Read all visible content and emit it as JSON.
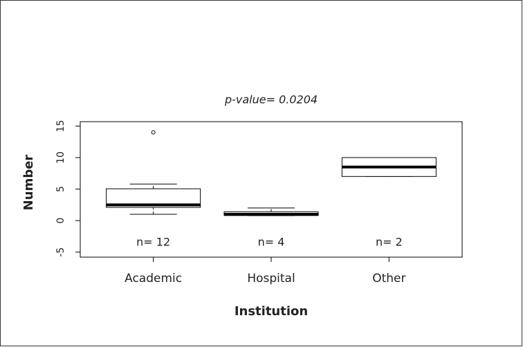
{
  "chart_data": {
    "type": "box",
    "title": "p-value= 0.0204",
    "x_label": "Institution",
    "y_label": "Number",
    "categories": [
      "Academic",
      "Hospital",
      "Other"
    ],
    "min": [
      1.0,
      0.8,
      7
    ],
    "q1": [
      2.1,
      0.8,
      7
    ],
    "median": [
      2.5,
      1.0,
      8.5
    ],
    "q3": [
      5.05,
      1.4,
      10
    ],
    "max": [
      5.8,
      2.0,
      10
    ],
    "outliers": [
      [
        14.0
      ],
      [],
      []
    ],
    "annotations": [
      "n= 12",
      "n= 4",
      "n= 2"
    ],
    "ylim": [
      -5.8,
      15.7
    ],
    "yticks": [
      -5,
      0,
      5,
      10,
      15
    ],
    "color": "#000000"
  }
}
